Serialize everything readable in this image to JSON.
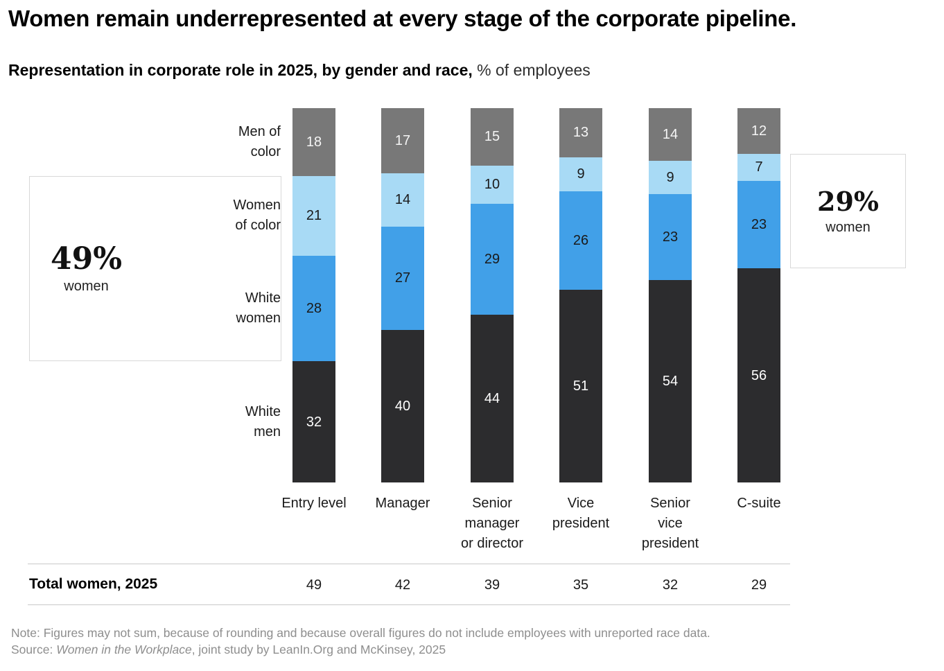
{
  "header": {
    "title": "Women remain underrepresented at every stage of the corporate pipeline.",
    "subtitle_bold": "Representation in corporate role in 2025, by gender and race,",
    "subtitle_regular": " % of employees"
  },
  "chart_data": {
    "type": "bar",
    "stacked": true,
    "orientation": "vertical",
    "unit": "% of employees",
    "gridlines": false,
    "categories": [
      "Entry level",
      "Manager",
      "Senior manager or director",
      "Vice president",
      "Senior vice president",
      "C-suite"
    ],
    "category_display": [
      "Entry level",
      "Manager",
      "Senior\nmanager\nor director",
      "Vice\npresident",
      "Senior\nvice\npresident",
      "C-suite"
    ],
    "series": [
      {
        "name": "Men of color",
        "display": "Men of\ncolor",
        "color": "#787878",
        "text_color": "#f5f5f5",
        "values": [
          18,
          17,
          15,
          13,
          14,
          12
        ]
      },
      {
        "name": "Women of color",
        "display": "Women\nof color",
        "color": "#a8daf5",
        "text_color": "#1a1a1a",
        "values": [
          21,
          14,
          10,
          9,
          9,
          7
        ]
      },
      {
        "name": "White women",
        "display": "White\nwomen",
        "color": "#41a0e8",
        "text_color": "#1a1a1a",
        "values": [
          28,
          27,
          29,
          26,
          23,
          23
        ]
      },
      {
        "name": "White men",
        "display": "White\nmen",
        "color": "#2c2c2e",
        "text_color": "#ffffff",
        "values": [
          32,
          40,
          44,
          51,
          54,
          56
        ]
      }
    ],
    "totals": [
      49,
      42,
      39,
      35,
      32,
      29
    ],
    "callouts": [
      {
        "value": "49%",
        "label": "women",
        "position": "entry-level-women-segments"
      },
      {
        "value": "29%",
        "label": "women",
        "position": "c-suite-women-segments"
      }
    ]
  },
  "total_row": {
    "label": "Total women, 2025"
  },
  "footer": {
    "note": "Note: Figures may not sum, because of rounding and because overall figures do not include employees with unreported race data.",
    "source_prefix": "Source: ",
    "source_italic": "Women in the Workplace",
    "source_suffix": ", joint study by LeanIn.Org and McKinsey, 2025"
  }
}
